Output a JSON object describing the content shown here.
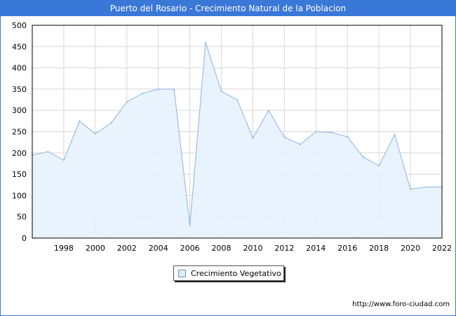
{
  "header": {
    "title": "Puerto del Rosario - Crecimiento Natural de la Poblacion"
  },
  "watermark": "FORO-CIUDAD.COM",
  "source": "http://www.foro-ciudad.com",
  "colors": {
    "title_bar": "#3a78d8",
    "area_fill": "#e6f2fd",
    "line": "#8fb3dd",
    "grid": "#d8d8d8"
  },
  "chart_data": {
    "type": "area",
    "title": "Puerto del Rosario - Crecimiento Natural de la Poblacion",
    "xlabel": "",
    "ylabel": "",
    "xlim": [
      1996,
      2022
    ],
    "ylim": [
      0,
      500
    ],
    "grid": true,
    "x": [
      1996,
      1997,
      1998,
      1999,
      2000,
      2001,
      2002,
      2003,
      2004,
      2005,
      2006,
      2007,
      2008,
      2009,
      2010,
      2011,
      2012,
      2013,
      2014,
      2015,
      2016,
      2017,
      2018,
      2019,
      2020,
      2021,
      2022
    ],
    "x_ticks": [
      1998,
      2000,
      2002,
      2004,
      2006,
      2008,
      2010,
      2012,
      2014,
      2016,
      2018,
      2020,
      2022
    ],
    "y_ticks": [
      0,
      50,
      100,
      150,
      200,
      250,
      300,
      350,
      400,
      450,
      500
    ],
    "series": [
      {
        "name": "Crecimiento Vegetativo",
        "values": [
          195,
          203,
          183,
          275,
          245,
          270,
          320,
          340,
          350,
          350,
          30,
          460,
          345,
          325,
          235,
          300,
          237,
          220,
          250,
          248,
          238,
          190,
          170,
          243,
          115,
          120,
          120
        ]
      }
    ],
    "legend": "bottom-center"
  }
}
